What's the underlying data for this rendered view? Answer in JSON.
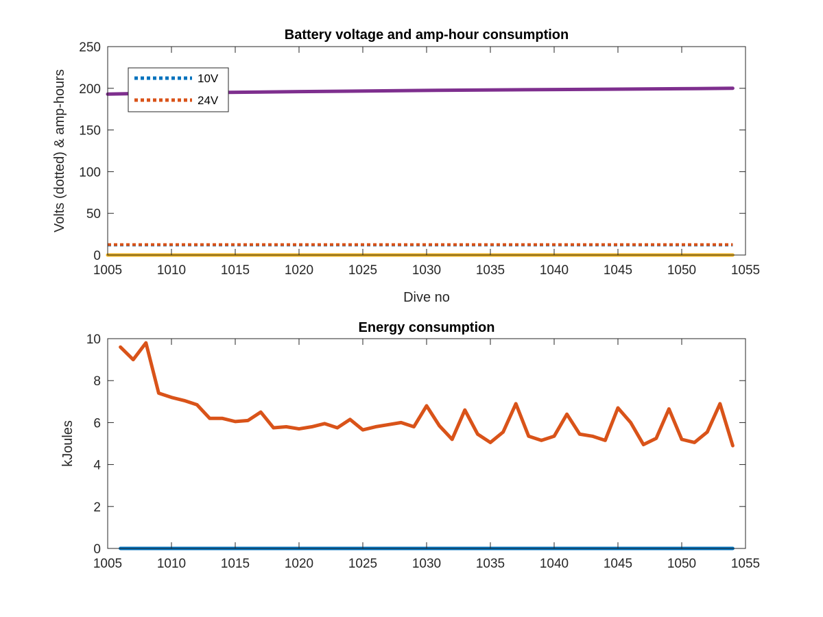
{
  "chart_data": [
    {
      "type": "line",
      "title": "Battery voltage and amp-hour consumption",
      "xlabel": "Dive no",
      "ylabel": "Volts (dotted) & amp-hours",
      "xlim": [
        1005,
        1055
      ],
      "ylim": [
        0,
        250
      ],
      "xticks": [
        1005,
        1010,
        1015,
        1020,
        1025,
        1030,
        1035,
        1040,
        1045,
        1050,
        1055
      ],
      "yticks": [
        0,
        50,
        100,
        150,
        200,
        250
      ],
      "legend": {
        "placement": "top-left",
        "entries": [
          "10V",
          "24V"
        ]
      },
      "series": [
        {
          "name": "10V",
          "style": "dotted",
          "color": "#0072BD",
          "x": [
            1005,
            1054
          ],
          "y": [
            12,
            12
          ]
        },
        {
          "name": "24V",
          "style": "dotted",
          "color": "#D95319",
          "x": [
            1005,
            1054
          ],
          "y": [
            12.5,
            12.5
          ]
        },
        {
          "style": "solid",
          "color": "#EDB120",
          "x": [
            1005,
            1054
          ],
          "y": [
            0,
            0
          ]
        },
        {
          "style": "solid",
          "color": "#7E2F8E",
          "x": [
            1005,
            1010,
            1020,
            1030,
            1040,
            1050,
            1054
          ],
          "y": [
            193,
            194.5,
            196,
            197.5,
            198.5,
            199.5,
            200
          ]
        }
      ]
    },
    {
      "type": "line",
      "title": "Energy consumption",
      "xlabel": "",
      "ylabel": "kJoules",
      "xlim": [
        1005,
        1055
      ],
      "ylim": [
        0,
        10
      ],
      "xticks": [
        1005,
        1010,
        1015,
        1020,
        1025,
        1030,
        1035,
        1040,
        1045,
        1050,
        1055
      ],
      "yticks": [
        0,
        2,
        4,
        6,
        8,
        10
      ],
      "series": [
        {
          "style": "solid",
          "color": "#0072BD",
          "x": [
            1006,
            1054
          ],
          "y": [
            0,
            0
          ]
        },
        {
          "style": "solid",
          "color": "#D95319",
          "x": [
            1006,
            1007,
            1008,
            1009,
            1010,
            1011,
            1012,
            1013,
            1014,
            1015,
            1016,
            1017,
            1018,
            1019,
            1020,
            1021,
            1022,
            1023,
            1024,
            1025,
            1026,
            1027,
            1028,
            1029,
            1030,
            1031,
            1032,
            1033,
            1034,
            1035,
            1036,
            1037,
            1038,
            1039,
            1040,
            1041,
            1042,
            1043,
            1044,
            1045,
            1046,
            1047,
            1048,
            1049,
            1050,
            1051,
            1052,
            1053,
            1054
          ],
          "y": [
            9.6,
            9.0,
            9.8,
            7.4,
            7.2,
            7.05,
            6.85,
            6.2,
            6.2,
            6.05,
            6.1,
            6.5,
            5.75,
            5.8,
            5.7,
            5.8,
            5.95,
            5.75,
            6.15,
            5.65,
            5.8,
            5.9,
            6.0,
            5.8,
            6.8,
            5.85,
            5.2,
            6.6,
            5.45,
            5.05,
            5.55,
            6.9,
            5.35,
            5.15,
            5.35,
            6.4,
            5.45,
            5.35,
            5.15,
            6.7,
            6.0,
            4.95,
            5.25,
            6.65,
            5.2,
            5.05,
            5.55,
            6.9,
            4.9
          ]
        }
      ]
    }
  ]
}
